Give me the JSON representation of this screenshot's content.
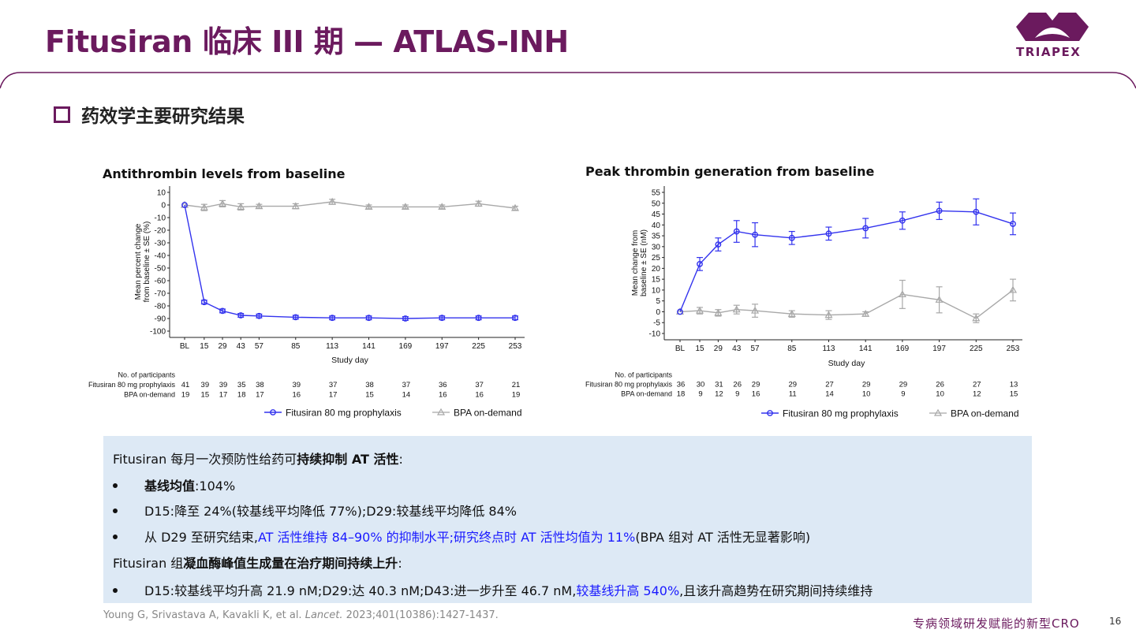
{
  "header": {
    "title": "Fitusiran 临床 III 期 — ATLAS-INH",
    "logo_text": "TRIAPEX",
    "brand_color": "#6b1a5e"
  },
  "section": {
    "subtitle": "药效学主要研究结果"
  },
  "chart_data": [
    {
      "type": "line",
      "title": "Antithrombin levels from baseline",
      "xlabel": "Study day",
      "ylabel": "Mean percent change from baseline ± SE (%)",
      "ylabel_lines": [
        "Mean percent change",
        "from baseline ± SE (%)"
      ],
      "x": [
        0,
        15,
        29,
        43,
        57,
        85,
        113,
        141,
        169,
        197,
        225,
        253
      ],
      "x_tick_labels": [
        "BL",
        "15",
        "29",
        "43",
        "57",
        "85",
        "113",
        "141",
        "169",
        "197",
        "225",
        "253"
      ],
      "ylim": [
        -100,
        10
      ],
      "y_ticks": [
        10,
        0,
        -10,
        -20,
        -30,
        -40,
        -50,
        -60,
        -70,
        -80,
        -90,
        -100
      ],
      "grid": false,
      "legend_placement": "bottom",
      "series": [
        {
          "name": "Fitusiran 80 mg prophylaxis",
          "color": "#3333ee",
          "marker": "circle",
          "values": [
            0,
            -77,
            -84,
            -87.5,
            -88,
            -89,
            -89.5,
            -89.5,
            -90,
            -89.5,
            -89.5,
            -89.5
          ],
          "se": [
            0,
            1.5,
            1.5,
            1.5,
            1.5,
            1.5,
            1.5,
            1.5,
            1.5,
            1.5,
            1.5,
            1.5
          ]
        },
        {
          "name": "BPA on-demand",
          "color": "#a8a8a8",
          "marker": "triangle",
          "values": [
            0,
            -2,
            1,
            -1.5,
            -1,
            -1,
            2.5,
            -1.5,
            -1.5,
            -1.5,
            1,
            -2.5
          ],
          "se": [
            0,
            2.5,
            2.5,
            2.5,
            1.5,
            2,
            2,
            1.5,
            1.5,
            1.5,
            2,
            1.5
          ]
        }
      ],
      "participants": {
        "label": "No. of participants",
        "rows": [
          {
            "name": "Fitusiran 80 mg prophylaxis",
            "counts": [
              "41",
              "39",
              "39",
              "35",
              "38",
              "39",
              "37",
              "38",
              "37",
              "36",
              "37",
              "21"
            ]
          },
          {
            "name": "BPA on-demand",
            "counts": [
              "19",
              "15",
              "17",
              "18",
              "17",
              "16",
              "17",
              "15",
              "14",
              "16",
              "16",
              "19"
            ]
          }
        ]
      }
    },
    {
      "type": "line",
      "title": "Peak thrombin generation from baseline",
      "xlabel": "Study day",
      "ylabel": "Mean change from baseline ± SE (nM)",
      "ylabel_lines": [
        "Mean change from",
        "baseline ± SE (nM)"
      ],
      "x": [
        0,
        15,
        29,
        43,
        57,
        85,
        113,
        141,
        169,
        197,
        225,
        253
      ],
      "x_tick_labels": [
        "BL",
        "15",
        "29",
        "43",
        "57",
        "85",
        "113",
        "141",
        "169",
        "197",
        "225",
        "253"
      ],
      "ylim": [
        -10,
        55
      ],
      "y_ticks": [
        55,
        50,
        45,
        40,
        35,
        30,
        25,
        20,
        15,
        10,
        5,
        0,
        -5,
        -10
      ],
      "grid": false,
      "legend_placement": "bottom",
      "series": [
        {
          "name": "Fitusiran 80 mg prophylaxis",
          "color": "#3333ee",
          "marker": "circle",
          "values": [
            0,
            22,
            31,
            37,
            35.5,
            34,
            36,
            38.5,
            42,
            46.5,
            46,
            40.5
          ],
          "se": [
            0,
            3,
            3,
            5,
            5.5,
            3,
            3,
            4.5,
            4,
            4,
            6,
            5
          ]
        },
        {
          "name": "BPA on-demand",
          "color": "#a8a8a8",
          "marker": "triangle",
          "values": [
            0,
            0.5,
            -0.5,
            1,
            0.5,
            -1,
            -1.5,
            -1,
            8,
            5.5,
            -3,
            10
          ],
          "se": [
            0,
            1.5,
            1.5,
            2,
            3,
            1.5,
            2,
            1,
            6.5,
            6,
            2,
            5
          ]
        }
      ],
      "participants": {
        "label": "No. of participants",
        "rows": [
          {
            "name": "Fitusiran 80 mg prophylaxis",
            "counts": [
              "36",
              "30",
              "31",
              "26",
              "29",
              "29",
              "27",
              "29",
              "29",
              "26",
              "27",
              "13"
            ]
          },
          {
            "name": "BPA on-demand",
            "counts": [
              "18",
              "9",
              "12",
              "9",
              "16",
              "11",
              "14",
              "10",
              "9",
              "10",
              "12",
              "15"
            ]
          }
        ]
      }
    }
  ],
  "summary": {
    "heading1_plain": "Fitusiran 每月一次预防性给药可",
    "heading1_bold": "持续抑制 AT 活性",
    "heading1_end": ":",
    "b1_bold": "基线均值",
    "b1_rest": ":104%",
    "b2": "D15:降至 24%(较基线平均降低 77%);D29:较基线平均降低 84%",
    "b3_a": "从 D29 至研究结束,",
    "b3_blue": "AT 活性维持 84–90% 的抑制水平;研究终点时 AT 活性均值为 11%",
    "b3_c": "(BPA 组对 AT 活性无显著影响)",
    "heading2_plain": "Fitusiran 组",
    "heading2_bold": "凝血酶峰值生成量在治疗期间持续上升",
    "heading2_end": ":",
    "b4_a": "D15:较基线平均升高 21.9 nM;D29:达 40.3 nM;D43:进一步升至 46.7 nM,",
    "b4_blue": "较基线升高 540%",
    "b4_c": ",且该升高趋势在研究期间持续维持",
    "highlight_color": "#1a1aff",
    "background_color": "#dde9f5"
  },
  "footer": {
    "reference_authors": "Young G, Srivastava A, Kavakli K, et al. ",
    "reference_journal": "Lancet.",
    "reference_detail": " 2023;401(10386):1427-1437.",
    "tagline": "专病领域研发赋能的新型CRO",
    "page_number": "16"
  }
}
